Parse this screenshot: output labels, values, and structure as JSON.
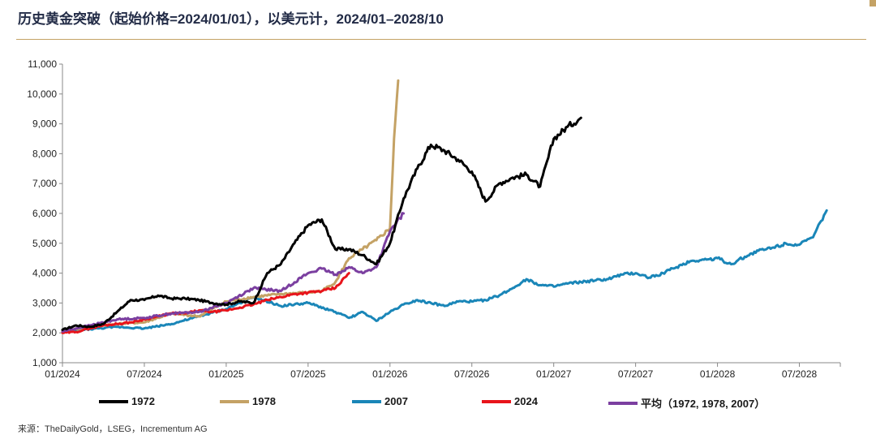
{
  "header": {
    "title": "历史黄金突破（起始价格=2024/01/01），以美元计，2024/01–2028/10"
  },
  "footer": {
    "source": "来源：TheDailyGold，LSEG，Incrementum AG"
  },
  "colors": {
    "accent": "#c4a265",
    "s1972": "#000000",
    "s1978": "#c4a265",
    "s2007": "#1a86b8",
    "s2024": "#e8141b",
    "savg": "#7b3fa0"
  },
  "chart_data": {
    "type": "line",
    "title": "历史黄金突破（起始价格=2024/01/01），以美元计，2024/01–2028/10",
    "xlabel": "",
    "ylabel": "",
    "ylim": [
      1000,
      11000
    ],
    "xlim": [
      0,
      57
    ],
    "x_unit": "months since 01/2024",
    "y_ticks": [
      "1,000",
      "2,000",
      "3,000",
      "4,000",
      "5,000",
      "6,000",
      "7,000",
      "8,000",
      "9,000",
      "10,000",
      "11,000"
    ],
    "y_tick_values": [
      1000,
      2000,
      3000,
      4000,
      5000,
      6000,
      7000,
      8000,
      9000,
      10000,
      11000
    ],
    "x_ticks": [
      "01/2024",
      "07/2024",
      "01/2025",
      "07/2025",
      "01/2026",
      "07/2026",
      "01/2027",
      "07/2027",
      "01/2028",
      "07/2028"
    ],
    "x_tick_values": [
      0,
      6,
      12,
      18,
      24,
      30,
      36,
      42,
      48,
      54
    ],
    "grid": false,
    "legend_position": "bottom",
    "series": [
      {
        "name": "1972",
        "color_key": "s1972",
        "points": [
          [
            0,
            2100
          ],
          [
            1,
            2250
          ],
          [
            2,
            2200
          ],
          [
            3,
            2300
          ],
          [
            4,
            2700
          ],
          [
            5,
            3100
          ],
          [
            6,
            3100
          ],
          [
            7,
            3250
          ],
          [
            8,
            3150
          ],
          [
            9,
            3150
          ],
          [
            10,
            3100
          ],
          [
            11,
            3000
          ],
          [
            12,
            2950
          ],
          [
            13,
            3050
          ],
          [
            14,
            3000
          ],
          [
            15,
            4000
          ],
          [
            16,
            4300
          ],
          [
            17,
            5000
          ],
          [
            18,
            5600
          ],
          [
            19,
            5800
          ],
          [
            20,
            4800
          ],
          [
            21,
            4800
          ],
          [
            22,
            4600
          ],
          [
            23,
            4300
          ],
          [
            24,
            5000
          ],
          [
            25,
            6500
          ],
          [
            26,
            7500
          ],
          [
            27,
            8300
          ],
          [
            28,
            8100
          ],
          [
            29,
            7800
          ],
          [
            30,
            7400
          ],
          [
            31,
            6400
          ],
          [
            32,
            7000
          ],
          [
            33,
            7200
          ],
          [
            34,
            7300
          ],
          [
            35,
            6900
          ],
          [
            36,
            8500
          ],
          [
            37,
            8900
          ],
          [
            38,
            9200
          ]
        ]
      },
      {
        "name": "1978",
        "color_key": "s1978",
        "points": [
          [
            0,
            2050
          ],
          [
            2,
            2200
          ],
          [
            4,
            2300
          ],
          [
            6,
            2350
          ],
          [
            8,
            2650
          ],
          [
            10,
            2550
          ],
          [
            12,
            3050
          ],
          [
            14,
            3200
          ],
          [
            16,
            3300
          ],
          [
            18,
            3350
          ],
          [
            19,
            3400
          ],
          [
            20,
            3700
          ],
          [
            21,
            4500
          ],
          [
            22,
            4800
          ],
          [
            23,
            5100
          ],
          [
            24,
            5500
          ],
          [
            24.3,
            8500
          ],
          [
            24.6,
            10450
          ]
        ]
      },
      {
        "name": "2007",
        "color_key": "s2007",
        "points": [
          [
            0,
            2050
          ],
          [
            4,
            2200
          ],
          [
            6,
            2150
          ],
          [
            8,
            2300
          ],
          [
            10,
            2550
          ],
          [
            12,
            2800
          ],
          [
            14,
            3200
          ],
          [
            16,
            2900
          ],
          [
            18,
            3000
          ],
          [
            20,
            2700
          ],
          [
            21,
            2500
          ],
          [
            22,
            2700
          ],
          [
            23,
            2400
          ],
          [
            24,
            2700
          ],
          [
            25,
            2950
          ],
          [
            26,
            3100
          ],
          [
            27,
            3000
          ],
          [
            28,
            2900
          ],
          [
            29,
            3050
          ],
          [
            30,
            3050
          ],
          [
            31,
            3100
          ],
          [
            32,
            3250
          ],
          [
            33,
            3500
          ],
          [
            34,
            3800
          ],
          [
            35,
            3600
          ],
          [
            36,
            3550
          ],
          [
            37,
            3650
          ],
          [
            38,
            3700
          ],
          [
            39,
            3750
          ],
          [
            40,
            3800
          ],
          [
            41,
            3950
          ],
          [
            42,
            4000
          ],
          [
            43,
            3850
          ],
          [
            44,
            4000
          ],
          [
            45,
            4200
          ],
          [
            46,
            4400
          ],
          [
            47,
            4450
          ],
          [
            48,
            4500
          ],
          [
            49,
            4300
          ],
          [
            50,
            4550
          ],
          [
            51,
            4750
          ],
          [
            52,
            4850
          ],
          [
            53,
            5000
          ],
          [
            54,
            4950
          ],
          [
            55,
            5200
          ],
          [
            56,
            6100
          ]
        ]
      },
      {
        "name": "2024",
        "color_key": "s2024",
        "points": [
          [
            0,
            2000
          ],
          [
            1,
            2030
          ],
          [
            2,
            2150
          ],
          [
            3,
            2250
          ],
          [
            4,
            2300
          ],
          [
            5,
            2350
          ],
          [
            6,
            2450
          ],
          [
            7,
            2550
          ],
          [
            8,
            2650
          ],
          [
            9,
            2650
          ],
          [
            10,
            2750
          ],
          [
            11,
            2700
          ],
          [
            12,
            2750
          ],
          [
            13,
            2850
          ],
          [
            14,
            2950
          ],
          [
            15,
            3100
          ],
          [
            16,
            3200
          ],
          [
            17,
            3300
          ],
          [
            18,
            3350
          ],
          [
            19,
            3400
          ],
          [
            20,
            3500
          ],
          [
            21,
            4000
          ]
        ]
      },
      {
        "name": "平均（1972, 1978, 2007）",
        "color_key": "savg",
        "points": [
          [
            0,
            2050
          ],
          [
            2,
            2250
          ],
          [
            4,
            2450
          ],
          [
            6,
            2500
          ],
          [
            8,
            2650
          ],
          [
            10,
            2700
          ],
          [
            12,
            3000
          ],
          [
            14,
            3500
          ],
          [
            16,
            3400
          ],
          [
            18,
            4000
          ],
          [
            19,
            4150
          ],
          [
            20,
            3950
          ],
          [
            21,
            4200
          ],
          [
            22,
            4000
          ],
          [
            23,
            4200
          ],
          [
            24,
            5400
          ],
          [
            25,
            6000
          ]
        ]
      }
    ]
  }
}
